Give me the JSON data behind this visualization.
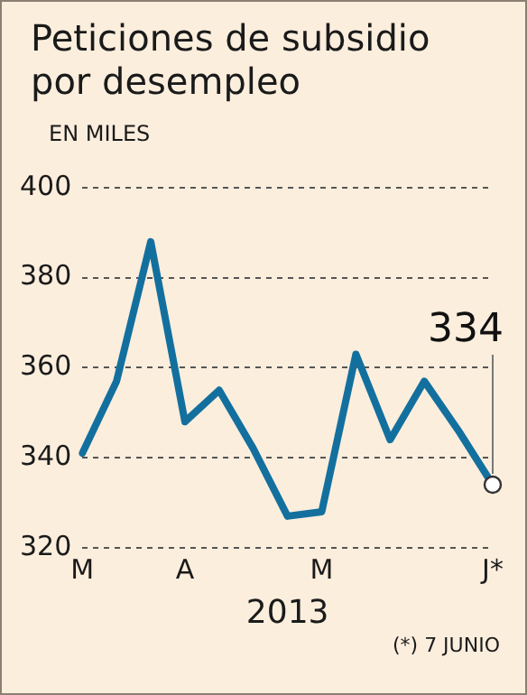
{
  "chart_data": {
    "type": "line",
    "title": "Peticiones de subsidio por desempleo",
    "subtitle": "EN MILES",
    "xlabel": "2013",
    "categories": [
      "M",
      null,
      null,
      "A",
      null,
      null,
      null,
      "M",
      null,
      null,
      null,
      null,
      "J*"
    ],
    "series": [
      {
        "color": "#13709e",
        "values": [
          341,
          357,
          388,
          348,
          355,
          342,
          327,
          328,
          363,
          344,
          357,
          346,
          334
        ]
      }
    ],
    "ylim": [
      320,
      400
    ],
    "yticks": [
      320,
      340,
      360,
      380,
      400
    ],
    "grid": "y",
    "marker": "none",
    "line_style": "solid",
    "annotations": [
      {
        "text": "334",
        "x": "J*",
        "y": 334
      },
      "(*) 7 JUNIO"
    ]
  }
}
